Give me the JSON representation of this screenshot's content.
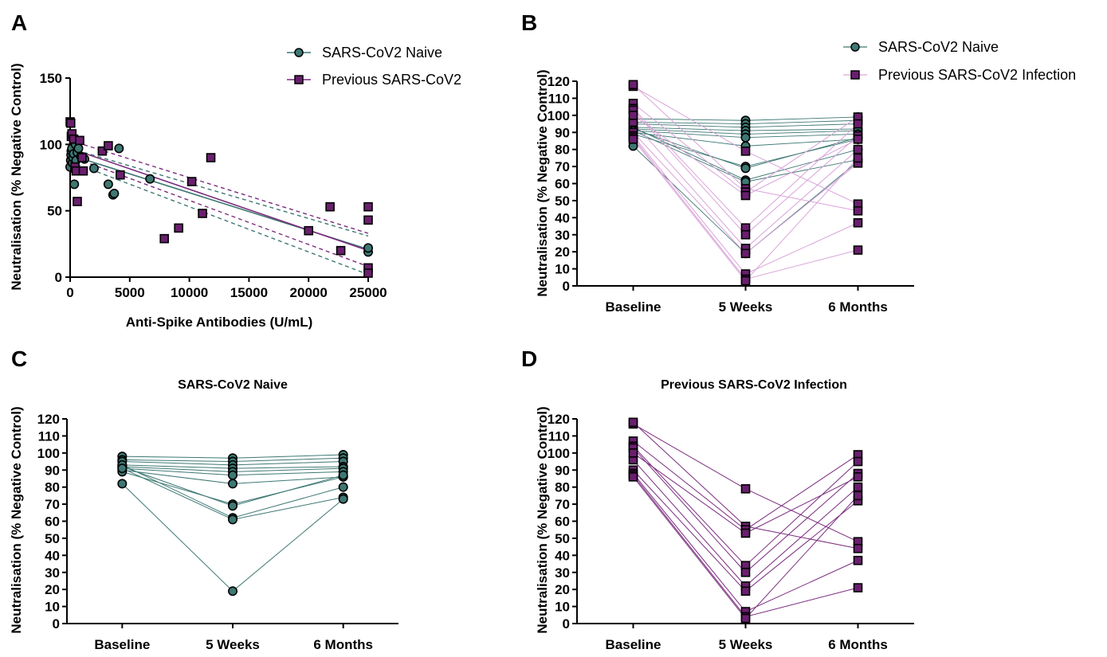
{
  "colors": {
    "naive": "#3d7873",
    "naive_fill": "#3d7873",
    "previous": "#7b2c7f",
    "previous_fill": "#6a1f6e",
    "previous_light": "#d9a4d8",
    "naive_line_b": "#9cbcb8",
    "axis": "#000000"
  },
  "chart_data": [
    {
      "panel": "A",
      "type": "scatter",
      "xlabel": "Anti-Spike Antibodies (U/mL)",
      "ylabel": "Neutralisation (% Negative Control)",
      "xlim": [
        0,
        25000
      ],
      "ylim": [
        0,
        150
      ],
      "xticks": [
        "0",
        "5000",
        "10000",
        "15000",
        "20000",
        "25000"
      ],
      "yticks": [
        "0",
        "50",
        "100",
        "150"
      ],
      "legend": {
        "position": "top-right"
      },
      "series": [
        {
          "name": "SARS-CoV2 Naive",
          "marker": "circle",
          "points": [
            [
              0,
              83
            ],
            [
              50,
              88
            ],
            [
              80,
              92
            ],
            [
              100,
              95
            ],
            [
              150,
              97
            ],
            [
              200,
              86
            ],
            [
              250,
              90
            ],
            [
              300,
              93
            ],
            [
              350,
              70
            ],
            [
              400,
              81
            ],
            [
              450,
              100
            ],
            [
              500,
              88
            ],
            [
              600,
              94
            ],
            [
              700,
              97
            ],
            [
              900,
              91
            ],
            [
              1200,
              89
            ],
            [
              2000,
              82
            ],
            [
              3200,
              70
            ],
            [
              3600,
              62
            ],
            [
              3700,
              63
            ],
            [
              4100,
              97
            ],
            [
              6700,
              74
            ],
            [
              25000,
              19
            ],
            [
              25000,
              22
            ]
          ],
          "fit": {
            "y0": 92,
            "y1": 21
          },
          "ci_upper": {
            "y0": 97,
            "y1": 31
          },
          "ci_lower": {
            "y0": 87,
            "y1": 2
          }
        },
        {
          "name": "Previous SARS-CoV2",
          "marker": "square",
          "points": [
            [
              0,
              117
            ],
            [
              50,
              116
            ],
            [
              100,
              106
            ],
            [
              150,
              108
            ],
            [
              300,
              104
            ],
            [
              400,
              83
            ],
            [
              500,
              80
            ],
            [
              600,
              57
            ],
            [
              800,
              103
            ],
            [
              1000,
              90
            ],
            [
              1100,
              80
            ],
            [
              2700,
              95
            ],
            [
              3200,
              99
            ],
            [
              4200,
              77
            ],
            [
              7900,
              29
            ],
            [
              9100,
              37
            ],
            [
              10200,
              72
            ],
            [
              11100,
              48
            ],
            [
              11800,
              90
            ],
            [
              20000,
              35
            ],
            [
              21800,
              53
            ],
            [
              22700,
              20
            ],
            [
              25000,
              53
            ],
            [
              25000,
              43
            ],
            [
              25000,
              7
            ],
            [
              25000,
              3
            ]
          ],
          "fit": {
            "y0": 97,
            "y1": 20
          },
          "ci_upper": {
            "y0": 103,
            "y1": 33
          },
          "ci_lower": {
            "y0": 91,
            "y1": 8
          }
        }
      ]
    },
    {
      "panel": "B",
      "type": "line",
      "ylabel": "Neutralisation (% Negative Control)",
      "categories": [
        "Baseline",
        "5 Weeks",
        "6 Months"
      ],
      "ylim": [
        0,
        120
      ],
      "yticks": [
        "0",
        "10",
        "20",
        "30",
        "40",
        "50",
        "60",
        "70",
        "80",
        "90",
        "100",
        "110",
        "120"
      ],
      "legend": {
        "position": "top-right"
      },
      "series": [
        {
          "name": "SARS-CoV2 Naive",
          "marker": "circle",
          "subjects": [
            [
              98,
              97,
              99
            ],
            [
              96,
              95,
              97
            ],
            [
              95,
              93,
              95
            ],
            [
              93,
              91,
              92
            ],
            [
              92,
              89,
              91
            ],
            [
              91,
              87,
              89
            ],
            [
              90,
              82,
              86
            ],
            [
              89,
              70,
              86
            ],
            [
              92,
              69,
              87
            ],
            [
              93,
              62,
              80
            ],
            [
              91,
              61,
              74
            ],
            [
              82,
              19,
              73
            ]
          ]
        },
        {
          "name": "Previous SARS-CoV2 Infection",
          "marker": "square",
          "subjects": [
            [
              117,
              79,
              48
            ],
            [
              118,
              57,
              44
            ],
            [
              107,
              55,
              99
            ],
            [
              104,
              34,
              95
            ],
            [
              103,
              30,
              88
            ],
            [
              96,
              22,
              80
            ],
            [
              90,
              19,
              72
            ],
            [
              88,
              7,
              37
            ],
            [
              87,
              4,
              21
            ],
            [
              86,
              3,
              75
            ],
            [
              100,
              53,
              86
            ]
          ]
        }
      ]
    },
    {
      "panel": "C",
      "type": "line",
      "title": "SARS-CoV2 Naive",
      "ylabel": "Neutralisation (% Negative Control)",
      "categories": [
        "Baseline",
        "5 Weeks",
        "6 Months"
      ],
      "ylim": [
        0,
        120
      ],
      "yticks": [
        "0",
        "10",
        "20",
        "30",
        "40",
        "50",
        "60",
        "70",
        "80",
        "90",
        "100",
        "110",
        "120"
      ],
      "series": [
        {
          "marker": "circle",
          "subjects": [
            [
              98,
              97,
              99
            ],
            [
              96,
              95,
              97
            ],
            [
              95,
              93,
              95
            ],
            [
              93,
              91,
              92
            ],
            [
              92,
              89,
              91
            ],
            [
              91,
              87,
              89
            ],
            [
              90,
              82,
              86
            ],
            [
              89,
              70,
              86
            ],
            [
              92,
              69,
              87
            ],
            [
              93,
              62,
              80
            ],
            [
              91,
              61,
              74
            ],
            [
              82,
              19,
              73
            ]
          ]
        }
      ]
    },
    {
      "panel": "D",
      "type": "line",
      "title": "Previous SARS-CoV2 Infection",
      "ylabel": "Neutralisation (% Negative Control)",
      "categories": [
        "Baseline",
        "5 Weeks",
        "6 Months"
      ],
      "ylim": [
        0,
        120
      ],
      "yticks": [
        "0",
        "10",
        "20",
        "30",
        "40",
        "50",
        "60",
        "70",
        "80",
        "90",
        "100",
        "110",
        "120"
      ],
      "series": [
        {
          "marker": "square",
          "subjects": [
            [
              117,
              79,
              48
            ],
            [
              118,
              57,
              44
            ],
            [
              107,
              55,
              99
            ],
            [
              104,
              34,
              95
            ],
            [
              103,
              30,
              88
            ],
            [
              96,
              22,
              80
            ],
            [
              90,
              19,
              72
            ],
            [
              88,
              7,
              37
            ],
            [
              87,
              4,
              21
            ],
            [
              86,
              3,
              75
            ],
            [
              100,
              53,
              86
            ]
          ]
        }
      ]
    }
  ]
}
